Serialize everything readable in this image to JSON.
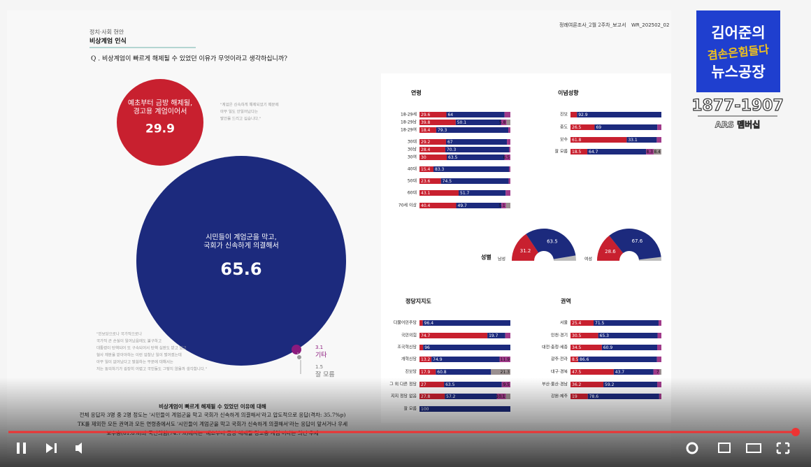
{
  "header": {
    "section": "정치·사회 현안",
    "title": "비상계엄 인식",
    "report": "정례여론조사_2월 2주차_보고서",
    "doc_id": "WR_202502_02"
  },
  "question": "Q . 비상계엄이 빠르게 해제될 수 있었던 이유가 무엇이라고 생각하십니까?",
  "bubbles": [
    {
      "label": [
        "예초부터 금방 해제될,",
        "경고용 계엄이어서"
      ],
      "value": 29.9
    },
    {
      "label": [
        "시민들이 계엄군을 막고,",
        "국회가 신속하게 의결해서"
      ],
      "value": 65.6
    },
    {
      "label": [
        "기타"
      ],
      "value": 3.1
    },
    {
      "label": [
        "잘 모름"
      ],
      "value": 1.5
    }
  ],
  "quotes": [
    [
      "\"계엄은 신속하게 해제되었기 때문에",
      "아무 일도 안일어났다는",
      "발언을 드리고 싶습니다.\""
    ],
    [
      "\"민보당으로나 국가적으로나",
      "국가적 큰 손실이 일어났음에도 불구하고",
      "대통령이 탄핵되어 또 구속되어서 탄핵 심판도 받고 있고",
      "형사 재판을 받아야하는 이런 엄청난 일이 벌어졌는데",
      "아무 일이 없어났다고 말씀하는 부분에 대해서는",
      "저는 동의하기가 굉장히 어렵고 국민들도 그렇지 않을까 생각합니다.\""
    ]
  ],
  "groups": {
    "age": {
      "title": "연령",
      "rows": [
        {
          "label": "18-29세",
          "values": [
            29.6,
            64.0,
            null,
            null
          ]
        },
        {
          "label": "18-29남",
          "values": [
            39.8,
            50.1,
            5.8,
            null
          ]
        },
        {
          "label": "18-29여",
          "values": [
            18.4,
            79.3,
            null,
            null
          ]
        },
        {
          "label": "30대",
          "values": [
            29.2,
            67.0,
            null,
            null
          ]
        },
        {
          "label": "30남",
          "values": [
            28.4,
            70.3,
            null,
            null
          ]
        },
        {
          "label": "30여",
          "values": [
            30.0,
            63.5,
            6.5,
            null
          ]
        },
        {
          "label": "40대",
          "values": [
            15.4,
            83.3,
            null,
            null
          ]
        },
        {
          "label": "50대",
          "values": [
            23.6,
            74.5,
            null,
            null
          ]
        },
        {
          "label": "60대",
          "values": [
            43.1,
            51.7,
            null,
            null
          ]
        },
        {
          "label": "70세 이상",
          "values": [
            40.4,
            49.7,
            5.1,
            null
          ]
        }
      ]
    },
    "ideology": {
      "title": "이념성향",
      "rows": [
        {
          "label": "진보",
          "values": [
            null,
            92.9,
            null,
            null
          ]
        },
        {
          "label": "중도",
          "values": [
            26.5,
            69.0,
            null,
            null
          ]
        },
        {
          "label": "보수",
          "values": [
            61.8,
            33.1,
            null,
            null
          ]
        },
        {
          "label": "잘 모름",
          "values": [
            18.5,
            64.7,
            8.3,
            8.4
          ]
        }
      ]
    },
    "party": {
      "title": "정당지지도",
      "rows": [
        {
          "label": "더불어민주당",
          "values": [
            null,
            96.4,
            null,
            null
          ]
        },
        {
          "label": "국민의힘",
          "values": [
            74.7,
            19.7,
            null,
            null
          ]
        },
        {
          "label": "조국혁신당",
          "values": [
            null,
            96.0,
            null,
            null
          ]
        },
        {
          "label": "개혁신당",
          "values": [
            13.2,
            74.9,
            11.9,
            null
          ]
        },
        {
          "label": "진보당",
          "values": [
            17.9,
            60.8,
            null,
            21.3
          ]
        },
        {
          "label": "그 외 다른 정당",
          "values": [
            27.0,
            63.5,
            9.5,
            null
          ]
        },
        {
          "label": "지지 정당 없음",
          "values": [
            27.8,
            57.2,
            10.1,
            null
          ]
        },
        {
          "label": "잘 모름",
          "values": [
            null,
            100.0,
            null,
            null
          ]
        }
      ]
    },
    "region": {
      "title": "권역",
      "rows": [
        {
          "label": "서울",
          "values": [
            25.4,
            71.5,
            null,
            null
          ]
        },
        {
          "label": "인천·경기",
          "values": [
            30.5,
            65.3,
            null,
            null
          ]
        },
        {
          "label": "대전·충청·세종",
          "values": [
            34.5,
            60.9,
            null,
            null
          ]
        },
        {
          "label": "광주·전라",
          "values": [
            8.5,
            86.6,
            null,
            null
          ]
        },
        {
          "label": "대구·경북",
          "values": [
            47.5,
            43.7,
            7.0,
            null
          ]
        },
        {
          "label": "부산·울산·경남",
          "values": [
            36.2,
            59.2,
            null,
            null
          ]
        },
        {
          "label": "강원·제주",
          "values": [
            19.0,
            78.6,
            null,
            null
          ]
        }
      ]
    }
  },
  "gender": {
    "title": "성별",
    "items": [
      {
        "label": "남성",
        "values": [
          31.2,
          63.5
        ]
      },
      {
        "label": "여성",
        "values": [
          28.6,
          67.6
        ]
      }
    ]
  },
  "summary": {
    "title": "비상계엄이 빠르게 해제될 수 있었던 이유에 대해",
    "lines": [
      "전체 응답자 3명 중 2명 정도는 '시민들이 계엄군을 막고 국회가 신속하게 의결해서'라고 압도적으로 응답(격차: 35.7%p)",
      "TK를 제외한 모든 권역과 모든 연령층에서도 '시민들이 계엄군을 막고 국회가 신속하게 의결해서'라는 응답이 앞서거나 우세",
      "보수층(61.8%)과 국민의힘(74.7%)에서는 '예초부터 금방 해제될 경고용 계엄'이라는 의견 우세"
    ]
  },
  "channel": {
    "name_top": "김어준의",
    "name_mid": "겸손은힘들다",
    "name_bottom": "뉴스공장",
    "phone": "1877-1907",
    "membership": "ARS 멤버십"
  }
}
